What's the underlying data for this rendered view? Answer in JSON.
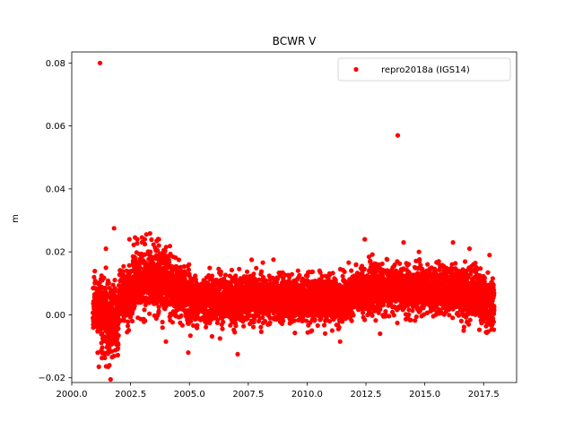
{
  "chart_data": {
    "type": "scatter",
    "title": "BCWR V",
    "xlabel": "",
    "ylabel": "m",
    "xlim": [
      2000.0,
      2018.9
    ],
    "ylim": [
      -0.0215,
      0.0835
    ],
    "xticks": [
      2000.0,
      2002.5,
      2005.0,
      2007.5,
      2010.0,
      2012.5,
      2015.0,
      2017.5
    ],
    "xtick_labels": [
      "2000.0",
      "2002.5",
      "2005.0",
      "2007.5",
      "2010.0",
      "2012.5",
      "2015.0",
      "2017.5"
    ],
    "yticks": [
      -0.02,
      0.0,
      0.02,
      0.04,
      0.06,
      0.08
    ],
    "ytick_labels": [
      "−0.02",
      "0.00",
      "0.02",
      "0.04",
      "0.06",
      "0.08"
    ],
    "grid": false,
    "legend_position": "top-right",
    "series": [
      {
        "name": "repro2018a (IGS14)",
        "color": "#ff0000",
        "marker": "circle",
        "trend_segments": [
          {
            "x": [
              2000.9,
              2001.25
            ],
            "y_mean": 0.002,
            "y_spread": 0.004
          },
          {
            "x": [
              2001.25,
              2002.0
            ],
            "y_mean": -0.001,
            "y_spread": 0.006
          },
          {
            "x": [
              2002.0,
              2002.6
            ],
            "y_mean": 0.006,
            "y_spread": 0.004
          },
          {
            "x": [
              2002.6,
              2004.2
            ],
            "y_mean": 0.011,
            "y_spread": 0.005
          },
          {
            "x": [
              2004.2,
              2005.0
            ],
            "y_mean": 0.007,
            "y_spread": 0.004
          },
          {
            "x": [
              2005.0,
              2012.0
            ],
            "y_mean": 0.005,
            "y_spread": 0.0035
          },
          {
            "x": [
              2012.0,
              2016.5
            ],
            "y_mean": 0.008,
            "y_spread": 0.0035
          },
          {
            "x": [
              2016.5,
              2017.4
            ],
            "y_mean": 0.007,
            "y_spread": 0.004
          },
          {
            "x": [
              2017.4,
              2017.95
            ],
            "y_mean": 0.004,
            "y_spread": 0.004
          }
        ],
        "outliers": [
          {
            "x": 2001.2,
            "y": 0.08
          },
          {
            "x": 2013.85,
            "y": 0.057
          },
          {
            "x": 2001.8,
            "y": 0.0275
          },
          {
            "x": 2001.45,
            "y": 0.021
          },
          {
            "x": 2002.45,
            "y": 0.024
          },
          {
            "x": 2003.1,
            "y": 0.024
          },
          {
            "x": 2003.7,
            "y": 0.024
          },
          {
            "x": 2012.45,
            "y": 0.024
          },
          {
            "x": 2016.2,
            "y": 0.023
          },
          {
            "x": 2014.75,
            "y": 0.02
          },
          {
            "x": 2016.9,
            "y": 0.021
          },
          {
            "x": 2017.75,
            "y": 0.019
          },
          {
            "x": 2000.95,
            "y": 0.012
          },
          {
            "x": 2001.15,
            "y": -0.0165
          },
          {
            "x": 2001.55,
            "y": -0.0165
          },
          {
            "x": 2001.6,
            "y": -0.016
          },
          {
            "x": 2001.1,
            "y": -0.012
          },
          {
            "x": 2001.5,
            "y": -0.012
          },
          {
            "x": 2004.0,
            "y": -0.0085
          },
          {
            "x": 2004.95,
            "y": -0.012
          },
          {
            "x": 2007.05,
            "y": -0.0125
          },
          {
            "x": 2011.4,
            "y": -0.0085
          },
          {
            "x": 2006.3,
            "y": -0.0075
          },
          {
            "x": 2013.1,
            "y": -0.006
          },
          {
            "x": 2016.65,
            "y": -0.005
          },
          {
            "x": 2017.6,
            "y": -0.0055
          },
          {
            "x": 2002.35,
            "y": -0.0055
          },
          {
            "x": 2010.2,
            "y": -0.005
          }
        ]
      }
    ]
  }
}
